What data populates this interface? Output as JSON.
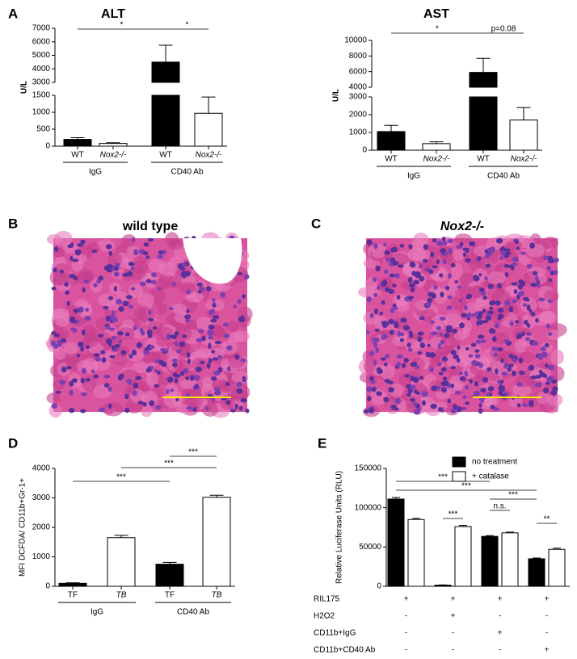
{
  "panel_labels": [
    "A",
    "B",
    "C",
    "D",
    "E"
  ],
  "histology": [
    {
      "title": "wild type"
    },
    {
      "title": "Nox2-/-"
    }
  ],
  "chart_data": [
    {
      "type": "bar",
      "title": "ALT",
      "ylabel": "U/L",
      "categories": [
        "WT",
        "Nox2-/-",
        "WT",
        "Nox2-/-"
      ],
      "groups": [
        "IgG",
        "CD40 Ab"
      ],
      "values": [
        200,
        80,
        4500,
        970
      ],
      "errors": [
        50,
        20,
        1250,
        480
      ],
      "colors": [
        "#000000",
        "#ffffff",
        "#000000",
        "#ffffff"
      ],
      "y_segments": [
        {
          "ylim": [
            0,
            1500
          ],
          "yticks": [
            0,
            500,
            1000,
            1500
          ]
        },
        {
          "ylim": [
            3000,
            7000
          ],
          "yticks": [
            3000,
            4000,
            5000,
            6000,
            7000
          ]
        }
      ],
      "significance": [
        {
          "from": 0,
          "to": 2,
          "label": "*"
        },
        {
          "from": 2,
          "to": 3,
          "label": "*"
        }
      ]
    },
    {
      "type": "bar",
      "title": "AST",
      "ylabel": "U/L",
      "categories": [
        "WT",
        "Nox2-/-",
        "WT",
        "Nox2-/-"
      ],
      "groups": [
        "IgG",
        "CD40 Ab"
      ],
      "values": [
        1050,
        370,
        5900,
        1700
      ],
      "errors": [
        350,
        100,
        1800,
        700
      ],
      "colors": [
        "#000000",
        "#ffffff",
        "#000000",
        "#ffffff"
      ],
      "y_segments": [
        {
          "ylim": [
            0,
            3000
          ],
          "yticks": [
            0,
            1000,
            2000,
            3000
          ]
        },
        {
          "ylim": [
            4000,
            10000
          ],
          "yticks": [
            4000,
            6000,
            8000,
            10000
          ]
        }
      ],
      "significance": [
        {
          "from": 0,
          "to": 2,
          "label": "*"
        },
        {
          "from": 2,
          "to": 3,
          "label": "p=0.08"
        }
      ]
    },
    {
      "type": "bar",
      "ylabel": "MFI DCFDA/ CD11b+Gr-1+",
      "categories": [
        "TF",
        "TB",
        "TF",
        "TB"
      ],
      "groups": [
        "IgG",
        "CD40 Ab"
      ],
      "values": [
        100,
        1650,
        750,
        3020
      ],
      "errors": [
        20,
        80,
        60,
        70
      ],
      "colors": [
        "#000000",
        "#ffffff",
        "#000000",
        "#ffffff"
      ],
      "y_segments": [
        {
          "ylim": [
            0,
            4000
          ],
          "yticks": [
            0,
            1000,
            2000,
            3000,
            4000
          ]
        }
      ],
      "significance": [
        {
          "from": 2,
          "to": 3,
          "label": "***"
        },
        {
          "from": 1,
          "to": 3,
          "label": "***"
        },
        {
          "from": 0,
          "to": 2,
          "label": "***"
        }
      ]
    },
    {
      "type": "grouped_bar",
      "ylabel": "Relative Luciferase Units (RLU)",
      "series": [
        {
          "name": "no treatment",
          "color": "#000000",
          "values": [
            111000,
            1500,
            63500,
            35000
          ],
          "errors": [
            2000,
            300,
            1000,
            1000
          ]
        },
        {
          "name": "+ catalase",
          "color": "#ffffff",
          "values": [
            85000,
            76000,
            68000,
            47000
          ],
          "errors": [
            1500,
            1500,
            1000,
            1500
          ]
        }
      ],
      "y_segments": [
        {
          "ylim": [
            0,
            150000
          ],
          "yticks": [
            0,
            50000,
            100000,
            150000
          ]
        }
      ],
      "significance": [
        {
          "from": 0,
          "to": 4,
          "label": "***"
        },
        {
          "from": 0,
          "to": 6,
          "label": "***"
        },
        {
          "from": 2,
          "to": 3,
          "label": "***"
        },
        {
          "from": 4,
          "to": 6,
          "label": "***"
        },
        {
          "from": 4,
          "to": 5,
          "label": "n.s."
        },
        {
          "from": 6,
          "to": 7,
          "label": "**"
        }
      ],
      "conditions": [
        {
          "label": "RIL175",
          "marks": [
            "+",
            "+",
            "+",
            "+"
          ]
        },
        {
          "label": "H2O2",
          "marks": [
            "-",
            "+",
            "-",
            "-"
          ]
        },
        {
          "label": "CD11b+IgG",
          "marks": [
            "-",
            "-",
            "+",
            "-"
          ]
        },
        {
          "label": "CD11b+CD40 Ab",
          "marks": [
            "-",
            "-",
            "-",
            "+"
          ]
        }
      ]
    }
  ]
}
